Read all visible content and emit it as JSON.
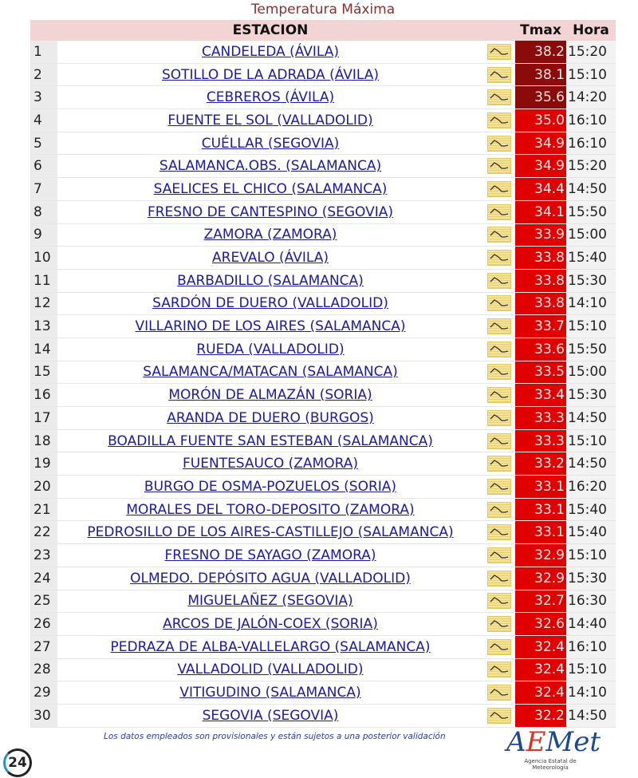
{
  "title": "Temperatura Máxima",
  "headers": {
    "station": "ESTACION",
    "tmax": "Tmax",
    "hora": "Hora"
  },
  "colors": {
    "dark": "#8b0a0a",
    "red": "#e00000"
  },
  "rows": [
    [
      "1",
      "CANDELEDA (ÁVILA)",
      "38.2",
      "15:20"
    ],
    [
      "2",
      "SOTILLO DE LA ADRADA (ÁVILA)",
      "38.1",
      "15:10"
    ],
    [
      "3",
      "CEBREROS (ÁVILA)",
      "35.6",
      "14:20"
    ],
    [
      "4",
      "FUENTE EL SOL (VALLADOLID)",
      "35.0",
      "16:10"
    ],
    [
      "5",
      "CUÉLLAR (SEGOVIA)",
      "34.9",
      "16:10"
    ],
    [
      "6",
      "SALAMANCA.OBS. (SALAMANCA)",
      "34.9",
      "15:20"
    ],
    [
      "7",
      "SAELICES EL CHICO (SALAMANCA)",
      "34.4",
      "14:50"
    ],
    [
      "8",
      "FRESNO DE CANTESPINO (SEGOVIA)",
      "34.1",
      "15:50"
    ],
    [
      "9",
      "ZAMORA (ZAMORA)",
      "33.9",
      "15:00"
    ],
    [
      "10",
      "AREVALO (ÁVILA)",
      "33.8",
      "15:40"
    ],
    [
      "11",
      "BARBADILLO (SALAMANCA)",
      "33.8",
      "15:30"
    ],
    [
      "12",
      "SARDÓN DE DUERO (VALLADOLID)",
      "33.8",
      "14:10"
    ],
    [
      "13",
      "VILLARINO DE LOS AIRES (SALAMANCA)",
      "33.7",
      "15:10"
    ],
    [
      "14",
      "RUEDA (VALLADOLID)",
      "33.6",
      "15:50"
    ],
    [
      "15",
      "SALAMANCA/MATACAN (SALAMANCA)",
      "33.5",
      "15:00"
    ],
    [
      "16",
      "MORÓN DE ALMAZÁN (SORIA)",
      "33.4",
      "15:30"
    ],
    [
      "17",
      "ARANDA DE DUERO (BURGOS)",
      "33.3",
      "14:50"
    ],
    [
      "18",
      "BOADILLA FUENTE SAN ESTEBAN (SALAMANCA)",
      "33.3",
      "15:10"
    ],
    [
      "19",
      "FUENTESAUCO (ZAMORA)",
      "33.2",
      "14:50"
    ],
    [
      "20",
      "BURGO DE OSMA-POZUELOS (SORIA)",
      "33.1",
      "16:20"
    ],
    [
      "21",
      "MORALES DEL TORO-DEPOSITO (ZAMORA)",
      "33.1",
      "15:40"
    ],
    [
      "22",
      "PEDROSILLO DE LOS AIRES-CASTILLEJO (SALAMANCA)",
      "33.1",
      "15:40"
    ],
    [
      "23",
      "FRESNO DE SAYAGO (ZAMORA)",
      "32.9",
      "15:10"
    ],
    [
      "24",
      "OLMEDO. DEPÓSITO AGUA (VALLADOLID)",
      "32.9",
      "15:30"
    ],
    [
      "25",
      "MIGUELAÑEZ (SEGOVIA)",
      "32.7",
      "16:30"
    ],
    [
      "26",
      "ARCOS DE JALÓN-COEX (SORIA)",
      "32.6",
      "14:40"
    ],
    [
      "27",
      "PEDRAZA DE ALBA-VALLELARGO (SALAMANCA)",
      "32.4",
      "16:10"
    ],
    [
      "28",
      "VALLADOLID (VALLADOLID)",
      "32.4",
      "15:10"
    ],
    [
      "29",
      "VITIGUDINO (SALAMANCA)",
      "32.4",
      "14:10"
    ],
    [
      "30",
      "SEGOVIA (SEGOVIA)",
      "32.2",
      "14:50"
    ]
  ],
  "footer": "Los datos empleados son provisionales y están sujetos a una posterior validación",
  "logo": {
    "name": "AEMet",
    "subtitle": "Agencia Estatal de Meteorología"
  },
  "badge": "24"
}
